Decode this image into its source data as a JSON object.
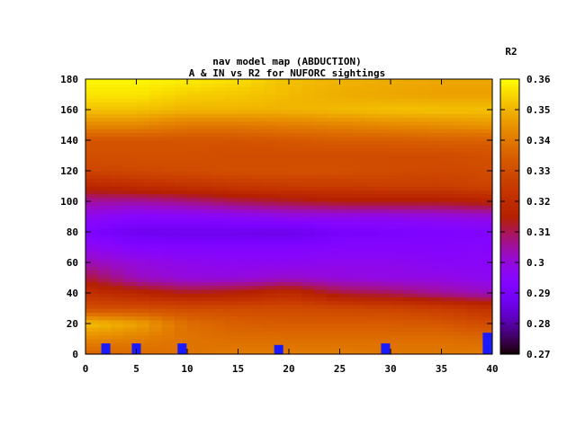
{
  "chart_data": {
    "type": "heatmap",
    "title": "nav model map (ABDUCTION)",
    "subtitle": "A & IN vs R2 for NUFORC sightings",
    "colorbar_label": "R2",
    "xlabel": "",
    "ylabel": "",
    "xlim": [
      0,
      40
    ],
    "ylim": [
      0,
      180
    ],
    "zlim": [
      0.27,
      0.36
    ],
    "x_ticks": [
      "0",
      "5",
      "10",
      "15",
      "20",
      "25",
      "30",
      "35",
      "40"
    ],
    "y_ticks": [
      "0",
      "20",
      "40",
      "60",
      "80",
      "100",
      "120",
      "140",
      "160",
      "180"
    ],
    "colorbar_ticks": [
      "0.27",
      "0.28",
      "0.29",
      "0.3",
      "0.31",
      "0.32",
      "0.33",
      "0.34",
      "0.35",
      "0.36"
    ],
    "y_rows": [
      0,
      10,
      20,
      30,
      40,
      50,
      60,
      70,
      80,
      90,
      100,
      110,
      120,
      130,
      140,
      150,
      160,
      170,
      180
    ],
    "x_cols": [
      0,
      5,
      10,
      15,
      20,
      25,
      30,
      35,
      40
    ],
    "values": [
      [
        0.335,
        0.337,
        0.339,
        0.341,
        0.341,
        0.341,
        0.34,
        0.34,
        0.341
      ],
      [
        0.343,
        0.341,
        0.339,
        0.338,
        0.338,
        0.338,
        0.338,
        0.338,
        0.337
      ],
      [
        0.352,
        0.348,
        0.338,
        0.335,
        0.334,
        0.334,
        0.334,
        0.333,
        0.33
      ],
      [
        0.331,
        0.331,
        0.33,
        0.33,
        0.33,
        0.329,
        0.328,
        0.326,
        0.322
      ],
      [
        0.322,
        0.318,
        0.314,
        0.316,
        0.32,
        0.312,
        0.31,
        0.306,
        0.303
      ],
      [
        0.312,
        0.303,
        0.3,
        0.3,
        0.302,
        0.3,
        0.299,
        0.299,
        0.297
      ],
      [
        0.304,
        0.3,
        0.298,
        0.297,
        0.297,
        0.298,
        0.298,
        0.296,
        0.296
      ],
      [
        0.298,
        0.294,
        0.293,
        0.293,
        0.293,
        0.294,
        0.294,
        0.294,
        0.295
      ],
      [
        0.292,
        0.287,
        0.287,
        0.287,
        0.286,
        0.29,
        0.291,
        0.292,
        0.293
      ],
      [
        0.298,
        0.294,
        0.295,
        0.296,
        0.298,
        0.298,
        0.298,
        0.299,
        0.3
      ],
      [
        0.305,
        0.305,
        0.307,
        0.31,
        0.312,
        0.314,
        0.314,
        0.314,
        0.316
      ],
      [
        0.318,
        0.32,
        0.322,
        0.324,
        0.325,
        0.325,
        0.326,
        0.326,
        0.328
      ],
      [
        0.328,
        0.329,
        0.33,
        0.331,
        0.331,
        0.331,
        0.33,
        0.329,
        0.33
      ],
      [
        0.331,
        0.331,
        0.331,
        0.33,
        0.33,
        0.33,
        0.33,
        0.33,
        0.331
      ],
      [
        0.332,
        0.332,
        0.332,
        0.332,
        0.333,
        0.334,
        0.334,
        0.335,
        0.335
      ],
      [
        0.343,
        0.343,
        0.34,
        0.34,
        0.341,
        0.342,
        0.343,
        0.344,
        0.345
      ],
      [
        0.352,
        0.352,
        0.35,
        0.35,
        0.35,
        0.351,
        0.352,
        0.352,
        0.352
      ],
      [
        0.357,
        0.357,
        0.354,
        0.353,
        0.351,
        0.349,
        0.348,
        0.347,
        0.347
      ],
      [
        0.359,
        0.359,
        0.358,
        0.356,
        0.352,
        0.35,
        0.349,
        0.348,
        0.348
      ]
    ],
    "markers": [
      {
        "x": 2,
        "y": 5
      },
      {
        "x": 5,
        "y": 5
      },
      {
        "x": 9.5,
        "y": 5
      },
      {
        "x": 19,
        "y": 4
      },
      {
        "x": 29.5,
        "y": 5
      },
      {
        "x": 39.5,
        "y": 12
      }
    ],
    "marker_color": "#1a1aff",
    "colormap": "gnuplot-black-purple-red-yellow",
    "grid": false,
    "legend": "colorbar-right"
  }
}
